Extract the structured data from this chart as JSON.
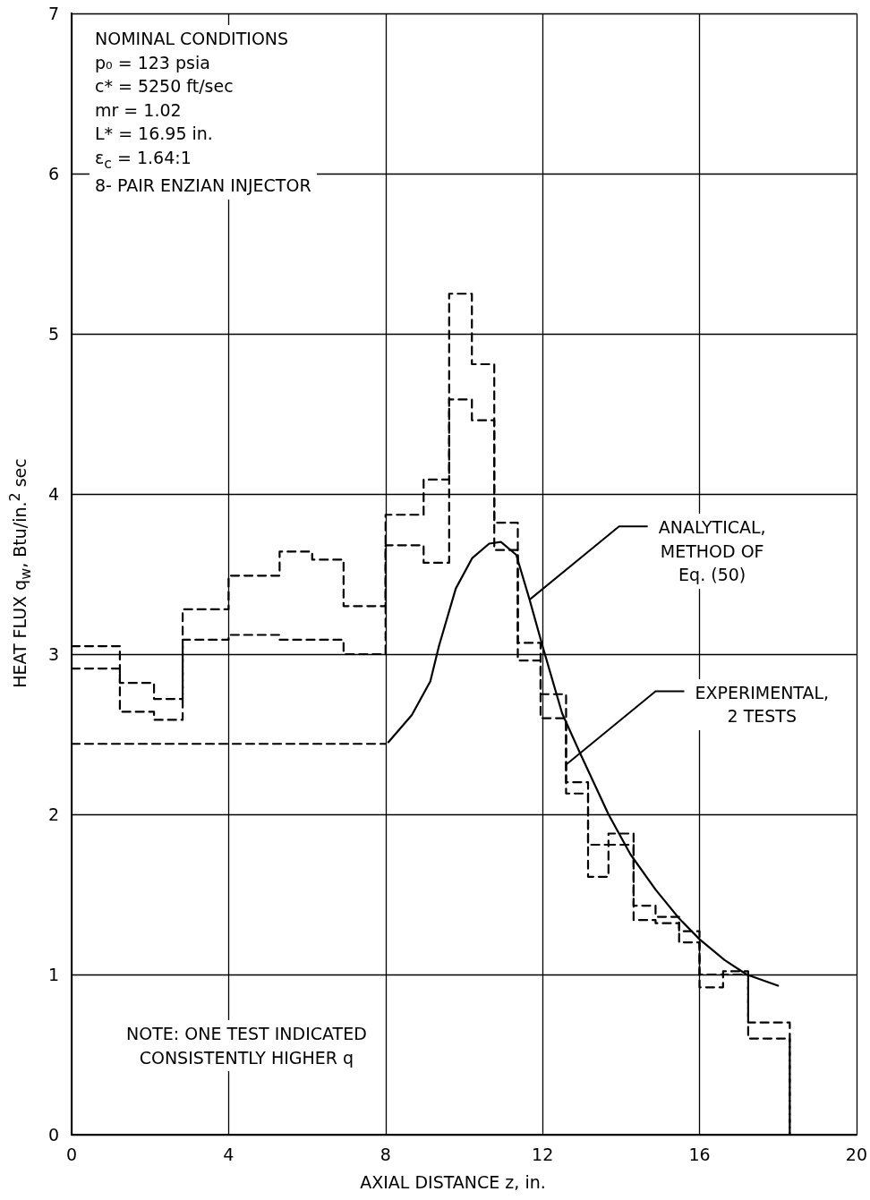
{
  "chart_data": {
    "type": "step",
    "xlabel": "AXIAL DISTANCE z, in.",
    "ylabel": "HEAT FLUX q$_{w}$, Btu/in.$^{2}$ sec",
    "xlim": [
      0,
      20
    ],
    "xticks": [
      0,
      4,
      8,
      12,
      16,
      20
    ],
    "ylim": [
      0,
      7
    ],
    "yticks": [
      0,
      1,
      2,
      3,
      4,
      5,
      6,
      7
    ],
    "grid": true,
    "marker": "none",
    "annotations": [
      "NOMINAL CONDITIONS\np₀ =  123 psia\nc* =  5250 ft/sec\nmr =  1.02\nL* =  16.95 in.\nε$_{c}$ =  1.64:1\n8- PAIR ENZIAN INJECTOR",
      "NOTE: ONE TEST INDICATED\nCONSISTENTLY HIGHER q",
      {
        "text": "ANALYTICAL,\nMETHOD OF\nEq. (50)",
        "x": 11.67,
        "y": 3.34
      },
      {
        "text": "EXPERIMENTAL,\n2 TESTS",
        "x": 12.6,
        "y": 2.31
      }
    ],
    "series": [
      {
        "type": "step",
        "color": "#000000",
        "line_style": "dashed",
        "x": [
          0,
          1.23,
          2.1,
          2.83,
          4,
          5.3,
          6.13,
          6.93,
          8,
          8.97,
          9.62,
          10.2,
          10.77,
          11.37,
          11.95,
          12.6,
          13.16,
          13.68,
          14.32,
          14.88,
          15.48,
          16,
          16.6,
          17.24,
          18.3
        ],
        "values": [
          3.05,
          2.82,
          2.72,
          3.28,
          3.49,
          3.64,
          3.59,
          3.3,
          3.87,
          4.09,
          5.25,
          4.81,
          3.82,
          3.07,
          2.75,
          2.2,
          1.81,
          1.88,
          1.43,
          1.36,
          1.27,
          1.0,
          1.02,
          0.7,
          0
        ]
      },
      {
        "type": "step",
        "color": "#000000",
        "line_style": "dashed",
        "x": [
          0,
          1.23,
          2.1,
          2.83,
          4,
          5.3,
          6.13,
          6.93,
          8,
          8.97,
          9.62,
          10.2,
          10.77,
          11.37,
          11.95,
          12.6,
          13.16,
          13.68,
          14.32,
          14.88,
          15.48,
          16,
          16.6,
          17.24,
          18.3
        ],
        "values": [
          2.91,
          2.64,
          2.59,
          3.09,
          3.12,
          3.09,
          3.09,
          3.0,
          3.68,
          3.57,
          4.59,
          4.46,
          3.65,
          2.96,
          2.6,
          2.13,
          1.61,
          1.81,
          1.34,
          1.32,
          1.2,
          0.92,
          1.0,
          0.6,
          0
        ]
      },
      {
        "type": "line",
        "color": "#000000",
        "line_style": "dashed",
        "x": [
          0,
          8
        ],
        "values": [
          2.44,
          2.44
        ]
      },
      {
        "type": "line",
        "color": "#000000",
        "line_style": "solid",
        "x": [
          8.07,
          8.67,
          9.14,
          9.36,
          9.79,
          10.21,
          10.64,
          10.94,
          11.33,
          11.67,
          12.0,
          12.5,
          12.96,
          13.68,
          14.24,
          14.88,
          15.48,
          16.0,
          16.64,
          17.2,
          18.0
        ],
        "values": [
          2.45,
          2.62,
          2.83,
          3.05,
          3.41,
          3.6,
          3.69,
          3.7,
          3.62,
          3.34,
          3.05,
          2.63,
          2.38,
          2.0,
          1.75,
          1.53,
          1.35,
          1.22,
          1.09,
          1.0,
          0.93
        ]
      }
    ]
  }
}
